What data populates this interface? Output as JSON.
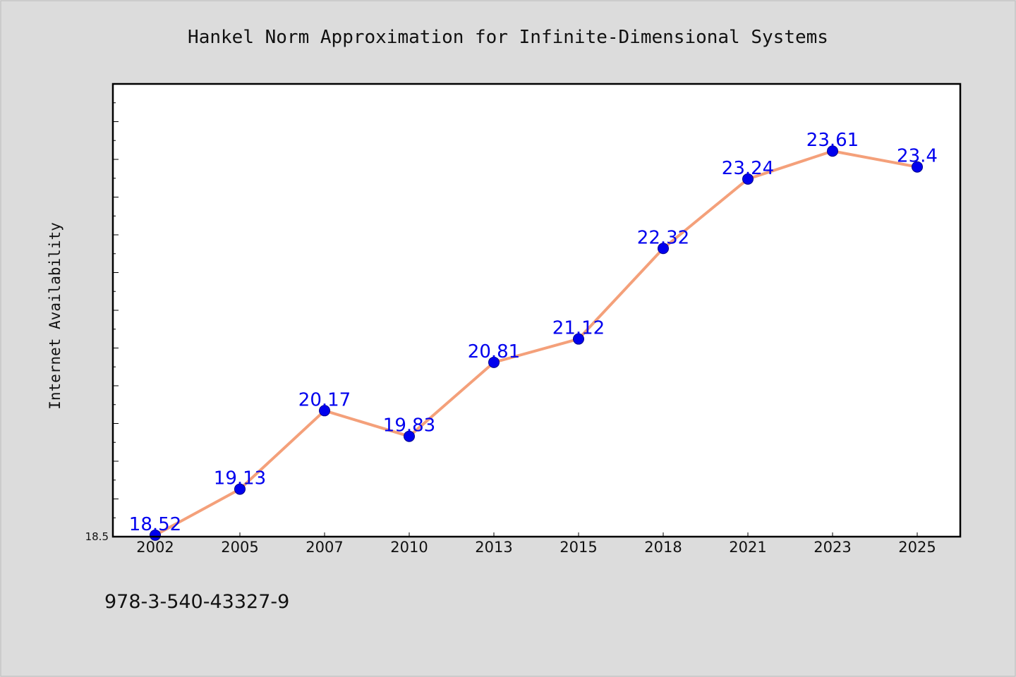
{
  "chart_data": {
    "type": "line",
    "title": "Hankel Norm Approximation for Infinite-Dimensional Systems",
    "xlabel": "",
    "ylabel": "Internet Availability",
    "categories": [
      "2002",
      "2005",
      "2007",
      "2010",
      "2013",
      "2015",
      "2018",
      "2021",
      "2023",
      "2025"
    ],
    "series": [
      {
        "values": [
          18.52,
          19.13,
          20.17,
          19.83,
          20.81,
          21.12,
          22.32,
          23.24,
          23.61,
          23.4
        ],
        "data_labels": [
          "18.52",
          "19.13",
          "20.17",
          "19.83",
          "20.81",
          "21.12",
          "22.32",
          "23.24",
          "23.61",
          "23.4"
        ]
      }
    ],
    "ylim": [
      18.5,
      24.5
    ],
    "ytick_labels": [
      "18.5"
    ],
    "grid": false,
    "legend": "none",
    "colors": {
      "line": "#f4a07a",
      "marker": "#0000ee",
      "label": "#0000ee",
      "plot_bg": "#ffffff",
      "page_bg": "#dcdcdc"
    }
  },
  "footer": {
    "text": "978-3-540-43327-9"
  }
}
